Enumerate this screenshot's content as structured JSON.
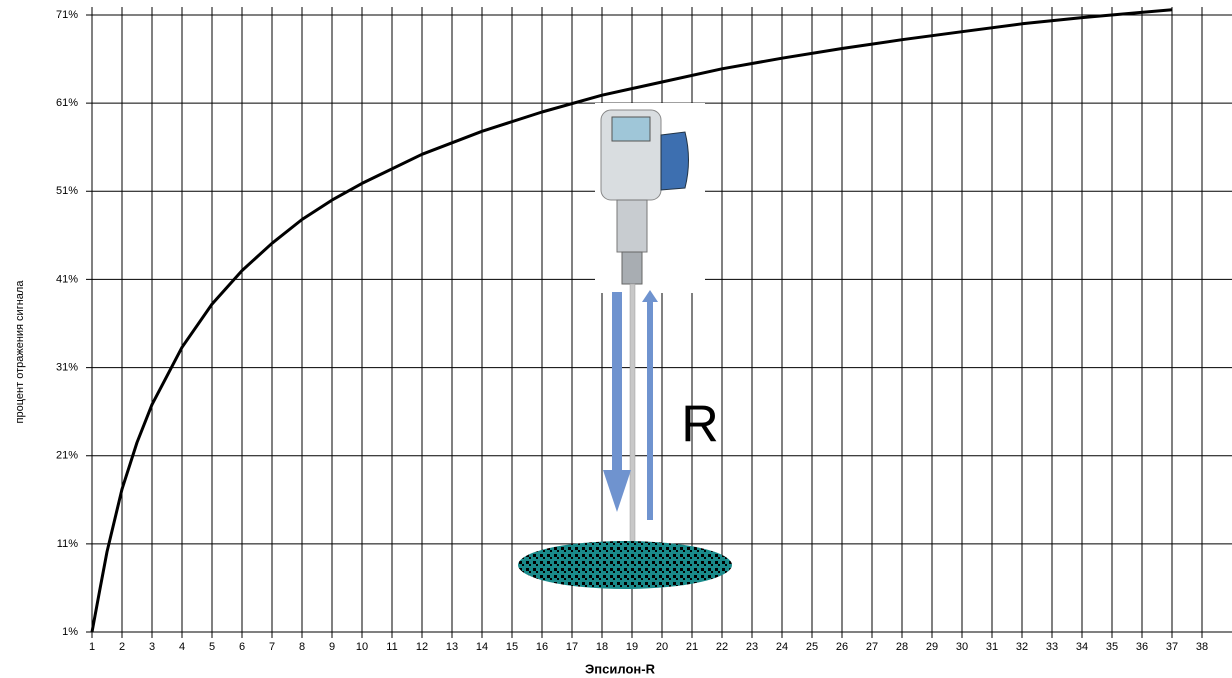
{
  "chart_data": {
    "type": "line",
    "x_label": "Эпсилон-R",
    "y_label": "процент отражения сигнала",
    "annotation": "R",
    "x": [
      1,
      1.25,
      1.5,
      2,
      2.5,
      3,
      4,
      5,
      6,
      7,
      8,
      9,
      10,
      12,
      14,
      16,
      18,
      20,
      22,
      24,
      26,
      28,
      30,
      32,
      34,
      37
    ],
    "values": [
      1,
      5.6,
      10.1,
      17.2,
      22.5,
      26.8,
      33.3,
      38.2,
      42.0,
      45.1,
      47.8,
      50.0,
      51.9,
      55.2,
      57.8,
      60.0,
      61.9,
      63.4,
      64.9,
      66.1,
      67.2,
      68.2,
      69.1,
      70.0,
      70.7,
      71.6
    ],
    "color": "#000000",
    "xlim": [
      1,
      39
    ],
    "ylim": [
      1,
      71
    ],
    "xticks": [
      1,
      2,
      3,
      4,
      5,
      6,
      7,
      8,
      9,
      10,
      11,
      12,
      13,
      14,
      15,
      16,
      17,
      18,
      19,
      20,
      21,
      22,
      23,
      24,
      25,
      26,
      27,
      28,
      29,
      30,
      31,
      32,
      33,
      34,
      35,
      36,
      37,
      38
    ],
    "yticks": [
      {
        "value": 1,
        "label": "1%"
      },
      {
        "value": 11,
        "label": "11%"
      },
      {
        "value": 21,
        "label": "21%"
      },
      {
        "value": 31,
        "label": "31%"
      },
      {
        "value": 41,
        "label": "41%"
      },
      {
        "value": 51,
        "label": "51%"
      },
      {
        "value": 61,
        "label": "61%"
      },
      {
        "value": 71,
        "label": "71%"
      }
    ],
    "grid": true
  }
}
